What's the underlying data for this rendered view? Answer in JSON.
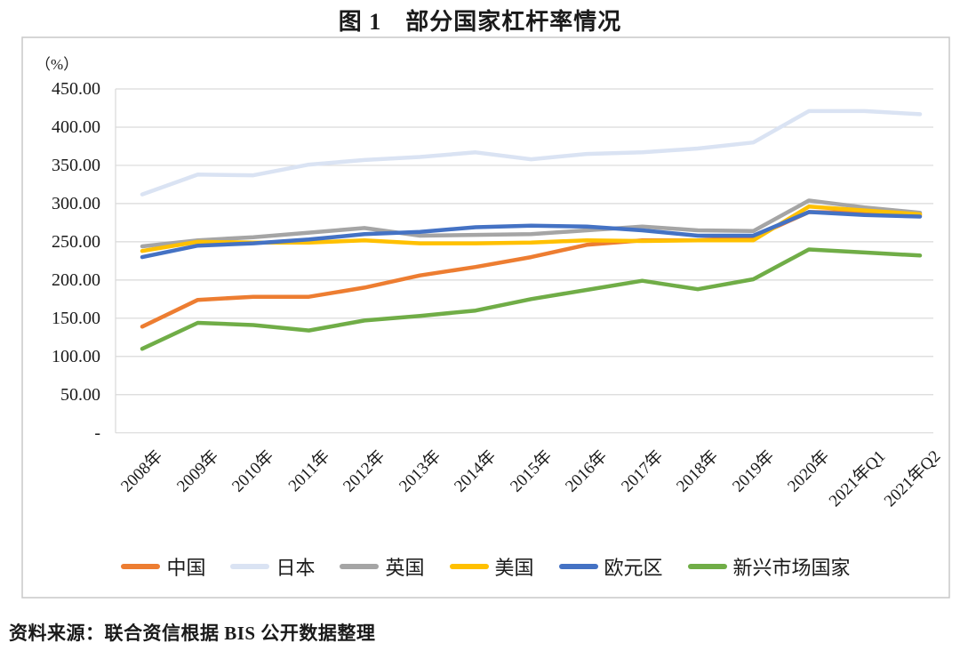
{
  "title": "图 1　部分国家杠杆率情况",
  "source_note": "资料来源：联合资信根据 BIS 公开数据整理",
  "colors": {
    "frame_border": "#c8c8c8",
    "gridline": "#d9d9d9",
    "text": "#1a1a1a"
  },
  "chart_data": {
    "type": "line",
    "title": "图 1　部分国家杠杆率情况",
    "unit_label": "（%）",
    "grid": true,
    "legend_position": "bottom",
    "x_labels_rotation_deg": 45,
    "y_axis": {
      "min": 0,
      "max": 450,
      "step": 50,
      "tick_labels": [
        "-",
        "50.00",
        "100.00",
        "150.00",
        "200.00",
        "250.00",
        "300.00",
        "350.00",
        "400.00",
        "450.00"
      ]
    },
    "categories": [
      "2008年",
      "2009年",
      "2010年",
      "2011年",
      "2012年",
      "2013年",
      "2014年",
      "2015年",
      "2016年",
      "2017年",
      "2018年",
      "2019年",
      "2020年",
      "2021年Q1",
      "2021年Q2"
    ],
    "series": [
      {
        "name": "中国",
        "color": "#ED7D31",
        "values": [
          139,
          174,
          178,
          178,
          190,
          206,
          217,
          230,
          246,
          252,
          252,
          256,
          289,
          288,
          285
        ]
      },
      {
        "name": "日本",
        "color": "#DAE3F3",
        "values": [
          312,
          338,
          337,
          351,
          357,
          361,
          367,
          358,
          365,
          367,
          372,
          380,
          421,
          421,
          417
        ]
      },
      {
        "name": "英国",
        "color": "#A5A5A5",
        "values": [
          244,
          252,
          256,
          262,
          268,
          258,
          259,
          260,
          265,
          270,
          265,
          264,
          304,
          295,
          288
        ]
      },
      {
        "name": "美国",
        "color": "#FFC000",
        "values": [
          238,
          250,
          249,
          249,
          252,
          248,
          248,
          249,
          252,
          251,
          252,
          252,
          296,
          291,
          286
        ]
      },
      {
        "name": "欧元区",
        "color": "#4472C4",
        "values": [
          230,
          245,
          248,
          253,
          260,
          263,
          269,
          271,
          270,
          265,
          258,
          258,
          289,
          285,
          283
        ]
      },
      {
        "name": "新兴市场国家",
        "color": "#70AD47",
        "values": [
          110,
          144,
          141,
          134,
          147,
          153,
          160,
          175,
          187,
          199,
          188,
          201,
          240,
          236,
          232
        ]
      }
    ]
  }
}
